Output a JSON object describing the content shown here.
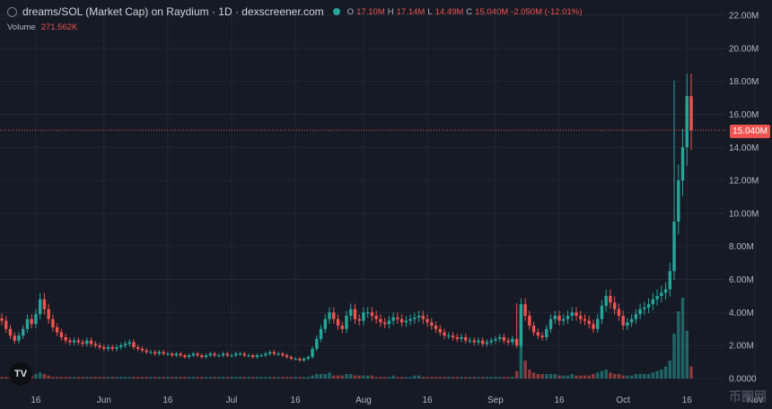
{
  "header": {
    "title": "dreams/SOL (Market Cap) on Raydium · 1D · dexscreener.com",
    "ohlc": [
      {
        "k": "O",
        "v": "17.10M"
      },
      {
        "k": "H",
        "v": "17.14M"
      },
      {
        "k": "L",
        "v": "14.49M"
      },
      {
        "k": "C",
        "v": "15.040M"
      },
      {
        "k": "",
        "v": "-2.050M (-12.01%)"
      }
    ]
  },
  "volume": {
    "label": "Volume",
    "value": "271.562K"
  },
  "last_price_badge": "15.040M",
  "logo_text": "TV",
  "watermark": "币圈网",
  "colors": {
    "up": "#26a69a",
    "down": "#ef5350",
    "bg": "#161a25",
    "grid": "#232734",
    "text": "#b2b5be"
  },
  "chart_data": {
    "type": "candlestick",
    "y_ticks": [
      "0.0000",
      "2.00M",
      "4.00M",
      "6.00M",
      "8.00M",
      "10.00M",
      "12.00M",
      "14.00M",
      "16.00M",
      "18.00M",
      "20.00M",
      "22.00M"
    ],
    "ylim": [
      0,
      22
    ],
    "y_unit": "M",
    "x_ticks": [
      {
        "label": "16",
        "i": 8
      },
      {
        "label": "Jun",
        "i": 24
      },
      {
        "label": "16",
        "i": 39
      },
      {
        "label": "Jul",
        "i": 54
      },
      {
        "label": "16",
        "i": 69
      },
      {
        "label": "Aug",
        "i": 85
      },
      {
        "label": "16",
        "i": 100
      },
      {
        "label": "Sep",
        "i": 116
      },
      {
        "label": "16",
        "i": 131
      },
      {
        "label": "Oct",
        "i": 146
      },
      {
        "label": "16",
        "i": 161
      },
      {
        "label": "Nov",
        "i": 177
      }
    ],
    "last_price": 15.04,
    "closes": [
      3.5,
      3.0,
      2.6,
      2.3,
      2.6,
      3.0,
      3.6,
      3.3,
      3.9,
      4.8,
      4.2,
      3.6,
      3.1,
      2.8,
      2.5,
      2.3,
      2.2,
      2.3,
      2.2,
      2.1,
      2.3,
      2.1,
      2.0,
      1.9,
      1.8,
      1.9,
      1.8,
      1.9,
      2.0,
      2.1,
      2.2,
      1.9,
      1.8,
      1.7,
      1.6,
      1.6,
      1.5,
      1.6,
      1.5,
      1.5,
      1.4,
      1.5,
      1.4,
      1.3,
      1.4,
      1.5,
      1.4,
      1.3,
      1.4,
      1.5,
      1.4,
      1.4,
      1.5,
      1.4,
      1.4,
      1.5,
      1.5,
      1.4,
      1.4,
      1.3,
      1.4,
      1.4,
      1.5,
      1.6,
      1.5,
      1.5,
      1.4,
      1.3,
      1.2,
      1.2,
      1.1,
      1.2,
      1.3,
      1.8,
      2.4,
      3.0,
      3.6,
      4.0,
      3.6,
      3.2,
      3.0,
      3.8,
      4.2,
      3.6,
      3.5,
      4.0,
      4.0,
      3.8,
      3.6,
      3.4,
      3.3,
      3.5,
      3.7,
      3.6,
      3.4,
      3.5,
      3.6,
      3.7,
      3.8,
      3.6,
      3.4,
      3.2,
      3.0,
      2.8,
      2.6,
      2.6,
      2.5,
      2.4,
      2.5,
      2.3,
      2.3,
      2.2,
      2.3,
      2.1,
      2.2,
      2.3,
      2.4,
      2.5,
      2.3,
      2.2,
      2.4,
      2.0,
      4.5,
      3.8,
      3.2,
      2.8,
      2.6,
      2.5,
      3.0,
      3.6,
      3.8,
      3.5,
      3.6,
      3.8,
      4.0,
      3.8,
      3.6,
      3.5,
      3.3,
      3.0,
      3.6,
      4.4,
      5.0,
      4.6,
      4.2,
      3.8,
      3.2,
      3.4,
      3.6,
      3.9,
      4.2,
      4.3,
      4.5,
      4.8,
      5.0,
      5.2,
      5.4,
      6.5,
      9.5,
      12.0,
      14.0,
      17.1,
      15.04
    ],
    "volumes": [
      0.1,
      0.1,
      0.1,
      0.1,
      0.1,
      0.2,
      0.2,
      0.2,
      0.3,
      0.4,
      0.3,
      0.2,
      0.1,
      0.1,
      0.1,
      0.1,
      0.1,
      0.1,
      0.1,
      0.1,
      0.1,
      0.1,
      0.1,
      0.1,
      0.1,
      0.1,
      0.1,
      0.1,
      0.1,
      0.1,
      0.1,
      0.1,
      0.1,
      0.1,
      0.1,
      0.1,
      0.1,
      0.1,
      0.1,
      0.1,
      0.1,
      0.1,
      0.1,
      0.1,
      0.1,
      0.1,
      0.1,
      0.1,
      0.1,
      0.1,
      0.1,
      0.1,
      0.1,
      0.1,
      0.1,
      0.1,
      0.1,
      0.1,
      0.1,
      0.1,
      0.1,
      0.1,
      0.1,
      0.1,
      0.1,
      0.1,
      0.1,
      0.1,
      0.1,
      0.1,
      0.1,
      0.1,
      0.1,
      0.2,
      0.3,
      0.3,
      0.3,
      0.4,
      0.2,
      0.2,
      0.2,
      0.3,
      0.3,
      0.2,
      0.2,
      0.2,
      0.2,
      0.2,
      0.1,
      0.1,
      0.1,
      0.1,
      0.2,
      0.1,
      0.1,
      0.1,
      0.1,
      0.2,
      0.2,
      0.1,
      0.1,
      0.1,
      0.1,
      0.1,
      0.1,
      0.1,
      0.1,
      0.1,
      0.1,
      0.1,
      0.1,
      0.1,
      0.1,
      0.1,
      0.1,
      0.1,
      0.1,
      0.1,
      0.1,
      0.1,
      0.1,
      0.5,
      4.6,
      1.2,
      0.6,
      0.4,
      0.3,
      0.3,
      0.3,
      0.3,
      0.3,
      0.2,
      0.2,
      0.2,
      0.3,
      0.2,
      0.2,
      0.2,
      0.2,
      0.3,
      0.4,
      0.5,
      0.6,
      0.4,
      0.3,
      0.3,
      0.2,
      0.2,
      0.2,
      0.3,
      0.3,
      0.3,
      0.3,
      0.4,
      0.5,
      0.6,
      0.8,
      1.2,
      3.0,
      4.5,
      5.4,
      3.2,
      0.8
    ]
  }
}
